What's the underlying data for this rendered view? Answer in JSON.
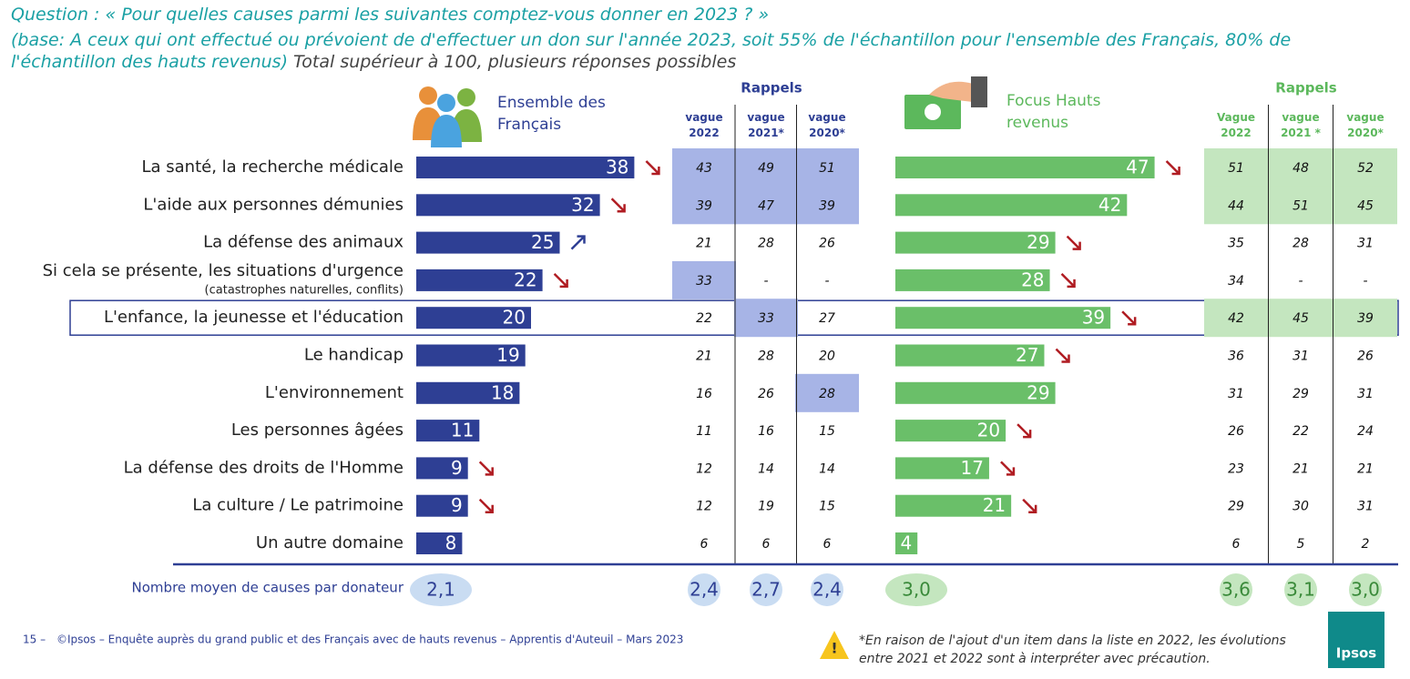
{
  "question": "Question : « Pour quelles causes parmi les suivantes comptez-vous donner en 2023 ? »",
  "base": "(base: A ceux qui ont effectué ou prévoient de d'effectuer un don sur l'année 2023, soit 55% de l'échantillon pour l'ensemble des Français, 80% de l'échantillon des hauts revenus)",
  "note": "Total supérieur à 100, plusieurs réponses possibles",
  "categories": [
    "La santé, la recherche médicale",
    "L'aide aux personnes démunies",
    "La défense des animaux",
    "Si cela se présente, les situations d'urgence",
    "L'enfance, la jeunesse et l'éducation",
    "Le handicap",
    "L'environnement",
    "Les personnes âgées",
    "La défense des droits de l'Homme",
    "La culture / Le patrimoine",
    "Un autre domaine"
  ],
  "urgence_detail": "(catastrophes naturelles, conflits)",
  "highlight_row": 4,
  "chart_data": [
    {
      "type": "bar",
      "title": "Ensemble des Français",
      "color": "#2e3f94",
      "xlim": [
        0,
        60
      ],
      "values": [
        38,
        32,
        25,
        22,
        20,
        19,
        18,
        11,
        9,
        9,
        8
      ],
      "trends": [
        "down",
        "down",
        "up",
        "down",
        null,
        null,
        null,
        null,
        "down",
        "down",
        null
      ]
    },
    {
      "type": "bar",
      "title": "Focus Hauts revenus",
      "color": "#6abf69",
      "xlim": [
        0,
        91
      ],
      "values": [
        47,
        42,
        29,
        28,
        39,
        27,
        29,
        20,
        17,
        21,
        4
      ],
      "trends": [
        "down",
        null,
        "down",
        "down",
        "down",
        "down",
        null,
        "down",
        "down",
        "down",
        null
      ]
    }
  ],
  "rappels": [
    {
      "title": "Rappels",
      "color": "#2e3f94",
      "shade": "#a7b4e6",
      "columns": [
        "vague 2022",
        "vague 2021*",
        "vague 2020*"
      ],
      "rows": [
        [
          43,
          49,
          51
        ],
        [
          39,
          47,
          39
        ],
        [
          21,
          28,
          26
        ],
        [
          33,
          "-",
          "-"
        ],
        [
          22,
          33,
          27
        ],
        [
          21,
          28,
          20
        ],
        [
          16,
          26,
          28
        ],
        [
          11,
          16,
          15
        ],
        [
          12,
          14,
          14
        ],
        [
          12,
          19,
          15
        ],
        [
          6,
          6,
          6
        ]
      ],
      "shaded": [
        [
          true,
          true,
          true
        ],
        [
          true,
          true,
          true
        ],
        [
          false,
          false,
          false
        ],
        [
          true,
          false,
          false
        ],
        [
          false,
          true,
          false
        ],
        [
          false,
          false,
          false
        ],
        [
          false,
          false,
          true
        ],
        [
          false,
          false,
          false
        ],
        [
          false,
          false,
          false
        ],
        [
          false,
          false,
          false
        ],
        [
          false,
          false,
          false
        ]
      ],
      "means": [
        "2,4",
        "2,7",
        "2,4"
      ]
    },
    {
      "title": "Rappels",
      "color": "#5cb85c",
      "shade": "#c4e6bf",
      "columns": [
        "Vague 2022",
        "vague 2021 *",
        "vague 2020*"
      ],
      "rows": [
        [
          51,
          48,
          52
        ],
        [
          44,
          51,
          45
        ],
        [
          35,
          28,
          31
        ],
        [
          34,
          "-",
          "-"
        ],
        [
          42,
          45,
          39
        ],
        [
          36,
          31,
          26
        ],
        [
          31,
          29,
          31
        ],
        [
          26,
          22,
          24
        ],
        [
          23,
          21,
          21
        ],
        [
          29,
          30,
          31
        ],
        [
          6,
          5,
          2
        ]
      ],
      "shaded": [
        [
          true,
          true,
          true
        ],
        [
          true,
          true,
          true
        ],
        [
          false,
          false,
          false
        ],
        [
          false,
          false,
          false
        ],
        [
          true,
          true,
          true
        ],
        [
          false,
          false,
          false
        ],
        [
          false,
          false,
          false
        ],
        [
          false,
          false,
          false
        ],
        [
          false,
          false,
          false
        ],
        [
          false,
          false,
          false
        ],
        [
          false,
          false,
          false
        ]
      ],
      "means": [
        "3,6",
        "3,1",
        "3,0"
      ]
    }
  ],
  "mean_label": "Nombre moyen de causes par donateur",
  "means": [
    "2,1",
    "3,0"
  ],
  "footer": {
    "page": "15 –",
    "source": "©Ipsos – Enquête auprès du grand public et des Français avec de hauts revenus – Apprentis d'Auteuil – Mars 2023",
    "footnote": "*En raison de l'ajout d'un item dans la liste en 2022, les évolutions entre 2021 et 2022 sont à interpréter avec précaution.",
    "logo": "Ipsos"
  }
}
